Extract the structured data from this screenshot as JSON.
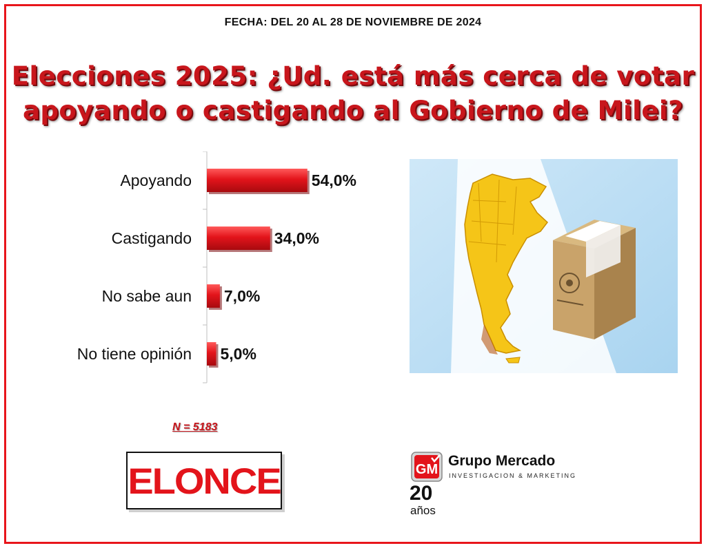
{
  "header": {
    "date_line": "FECHA: DEL 20 AL 28 DE NOVIEMBRE DE 2024",
    "title_line1": "Elecciones 2025: ¿Ud. está más cerca de votar",
    "title_line2": "apoyando o castigando al Gobierno de Milei?"
  },
  "chart_data": {
    "type": "bar",
    "orientation": "horizontal",
    "categories": [
      "Apoyando",
      "Castigando",
      "No sabe aun",
      "No tiene opinión"
    ],
    "values": [
      54.0,
      34.0,
      7.0,
      5.0
    ],
    "value_labels": [
      "54,0%",
      "34,0%",
      "7,0%",
      "5,0%"
    ],
    "xlim": [
      0,
      100
    ],
    "title": "",
    "xlabel": "",
    "ylabel": "",
    "grid": false,
    "legend": "none",
    "bar_color": "#e3141b"
  },
  "sample": {
    "label": "N = 5183"
  },
  "brands": {
    "media_logo": "ELONCE",
    "firm_name": "Grupo Mercado",
    "firm_subtitle": "INVESTIGACION & MARKETING",
    "anniversary_number": "20",
    "anniversary_word": "años",
    "badge_letters": "GM"
  },
  "illustration": {
    "icon": "argentina-map-ballot-box-illustration"
  },
  "colors": {
    "accent": "#c8161c",
    "border": "#e8151b",
    "map": "#f5c518",
    "box": "#c9a36a"
  }
}
